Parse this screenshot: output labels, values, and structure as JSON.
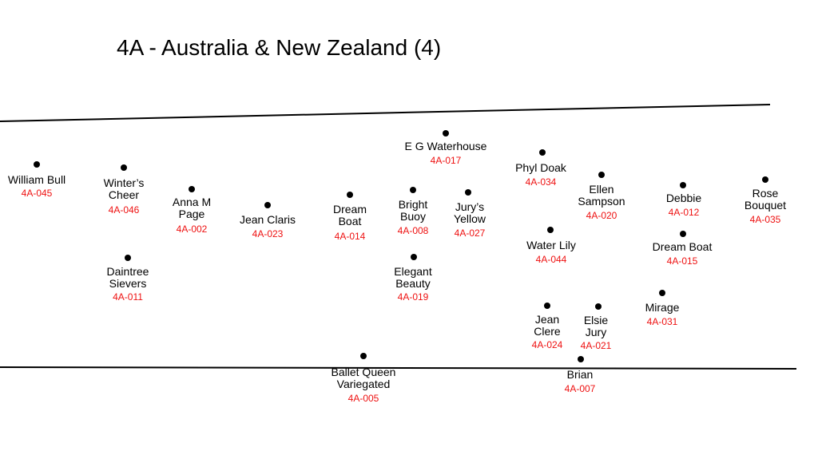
{
  "title": "4A - Australia & New Zealand (4)",
  "colors": {
    "background": "#ffffff",
    "text": "#000000",
    "code": "#ee1111",
    "dot": "#000000"
  },
  "plants": [
    {
      "name": "William Bull",
      "code": "4A-045"
    },
    {
      "name": "Winter’s Cheer",
      "code": "4A-046"
    },
    {
      "name": "Daintree Sievers",
      "code": "4A-011"
    },
    {
      "name": "Anna M Page",
      "code": "4A-002"
    },
    {
      "name": "Jean Claris",
      "code": "4A-023"
    },
    {
      "name": "Dream Boat",
      "code": "4A-014"
    },
    {
      "name": "Ballet Queen Variegated",
      "code": "4A-005"
    },
    {
      "name": "E G Waterhouse",
      "code": "4A-017"
    },
    {
      "name": "Bright Buoy",
      "code": "4A-008"
    },
    {
      "name": "Jury’s Yellow",
      "code": "4A-027"
    },
    {
      "name": "Elegant Beauty",
      "code": "4A-019"
    },
    {
      "name": "Phyl Doak",
      "code": "4A-034"
    },
    {
      "name": "Water Lily",
      "code": "4A-044"
    },
    {
      "name": "Ellen Sampson",
      "code": "4A-020"
    },
    {
      "name": "Jean Clere",
      "code": "4A-024"
    },
    {
      "name": "Elsie Jury",
      "code": "4A-021"
    },
    {
      "name": "Brian",
      "code": "4A-007"
    },
    {
      "name": "Debbie",
      "code": "4A-012"
    },
    {
      "name": "Dream Boat",
      "code": "4A-015"
    },
    {
      "name": "Mirage",
      "code": "4A-031"
    },
    {
      "name": "Rose Bouquet",
      "code": "4A-035"
    }
  ]
}
